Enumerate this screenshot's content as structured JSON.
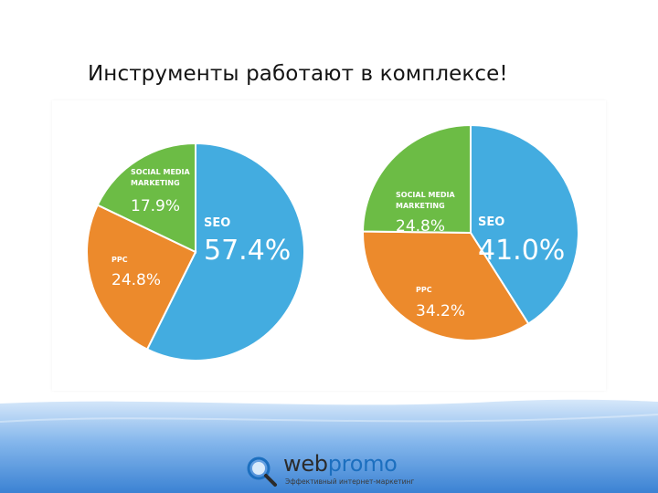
{
  "title": "Инструменты работают в комплексе!",
  "chart_data": [
    {
      "type": "pie",
      "slices": [
        {
          "label": "SEO",
          "value": 57.4,
          "display": "57.4%",
          "color": "#43ace0"
        },
        {
          "label": "PPC",
          "value": 24.8,
          "display": "24.8%",
          "color": "#ec8a2c"
        },
        {
          "label": "SOCIAL MEDIA MARKETING",
          "value": 17.9,
          "display": "17.9%",
          "color": "#6cbc45"
        }
      ]
    },
    {
      "type": "pie",
      "slices": [
        {
          "label": "SEO",
          "value": 41.0,
          "display": "41.0%",
          "color": "#43ace0"
        },
        {
          "label": "PPC",
          "value": 34.2,
          "display": "34.2%",
          "color": "#ec8a2c"
        },
        {
          "label": "SOCIAL MEDIA MARKETING",
          "value": 24.8,
          "display": "24.8%",
          "color": "#6cbc45"
        }
      ]
    }
  ],
  "brand": {
    "name_prefix": "web",
    "name_suffix": "promo",
    "tagline": "Эффективный интернет-маркетинг",
    "colors": {
      "accent": "#1c6fbf",
      "footer": "#3f86d6"
    },
    "icon": "magnifier-logo-icon"
  }
}
